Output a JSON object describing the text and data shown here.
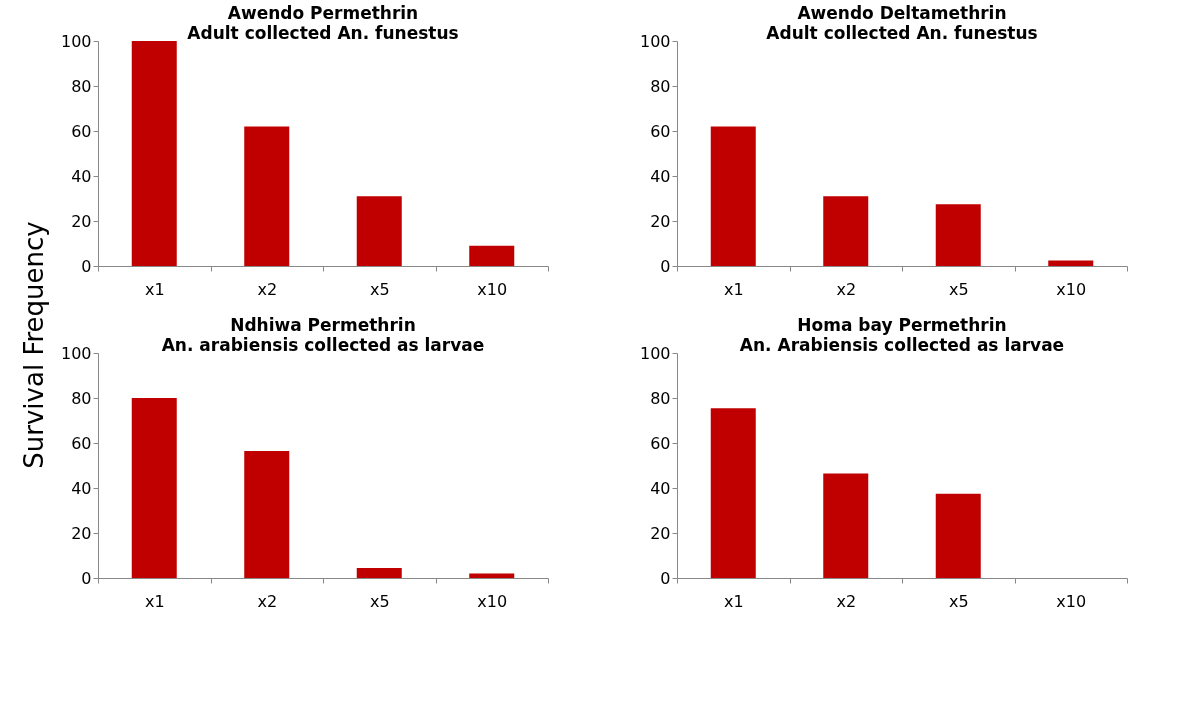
{
  "chart_data": [
    {
      "type": "bar",
      "title": "Awendo Permethrin",
      "subtitle": "Adult collected An. funestus",
      "ylabel": "Survival Frequency",
      "categories": [
        "x1",
        "x2",
        "x5",
        "x10"
      ],
      "values": [
        100,
        62,
        31,
        9
      ],
      "color": "#c00000",
      "ylim": [
        0,
        100
      ],
      "yticks": [
        0,
        20,
        40,
        60,
        80,
        100
      ],
      "grid": false
    },
    {
      "type": "bar",
      "title": "Awendo Deltamethrin",
      "subtitle": "Adult collected An. funestus",
      "categories": [
        "x1",
        "x2",
        "x5",
        "x10"
      ],
      "values": [
        62,
        31,
        27.5,
        2.5
      ],
      "color": "#c00000",
      "ylim": [
        0,
        100
      ],
      "yticks": [
        0,
        20,
        40,
        60,
        80,
        100
      ],
      "grid": false
    },
    {
      "type": "bar",
      "title": "Ndhiwa Permethrin",
      "subtitle": "An. arabiensis collected as larvae",
      "categories": [
        "x1",
        "x2",
        "x5",
        "x10"
      ],
      "values": [
        80,
        56.5,
        4.5,
        2
      ],
      "color": "#c00000",
      "ylim": [
        0,
        100
      ],
      "yticks": [
        0,
        20,
        40,
        60,
        80,
        100
      ],
      "grid": false
    },
    {
      "type": "bar",
      "title": "Homa bay Permethrin",
      "subtitle": "An. Arabiensis collected as larvae",
      "categories": [
        "x1",
        "x2",
        "x5",
        "x10"
      ],
      "values": [
        75.5,
        46.5,
        37.5,
        0
      ],
      "color": "#c00000",
      "ylim": [
        0,
        100
      ],
      "yticks": [
        0,
        20,
        40,
        60,
        80,
        100
      ],
      "grid": false
    }
  ]
}
